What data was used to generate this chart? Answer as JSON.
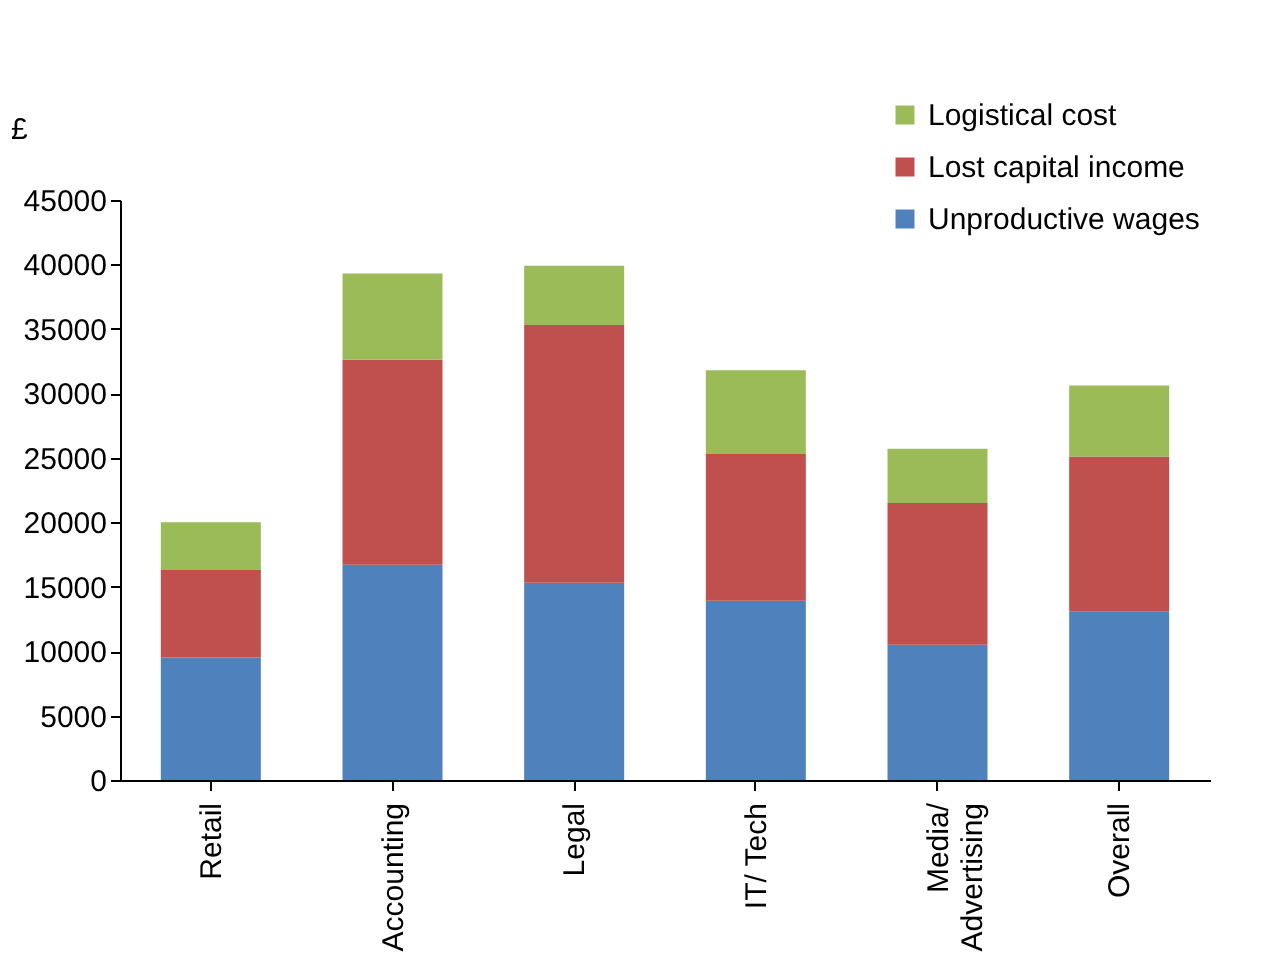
{
  "chart_data": {
    "type": "bar",
    "stacked": true,
    "ylabel": "£",
    "categories": [
      "Retail",
      "Accounting",
      "Legal",
      "IT/ Tech",
      "Media/ Advertising",
      "Overall"
    ],
    "series": [
      {
        "name": "Unproductive wages",
        "color": "#4f81bd",
        "values": [
          9500,
          16700,
          15300,
          13900,
          10500,
          13100
        ]
      },
      {
        "name": "Lost capital income",
        "color": "#c0504d",
        "values": [
          6800,
          15900,
          20000,
          11400,
          11000,
          12000
        ]
      },
      {
        "name": "Logistical cost",
        "color": "#9bbb59",
        "values": [
          3700,
          6700,
          4600,
          6500,
          4200,
          5500
        ]
      }
    ],
    "ylim": [
      0,
      45000
    ],
    "yticks": [
      0,
      5000,
      10000,
      15000,
      20000,
      25000,
      30000,
      35000,
      40000,
      45000
    ],
    "grid": false,
    "legend": "top right"
  }
}
